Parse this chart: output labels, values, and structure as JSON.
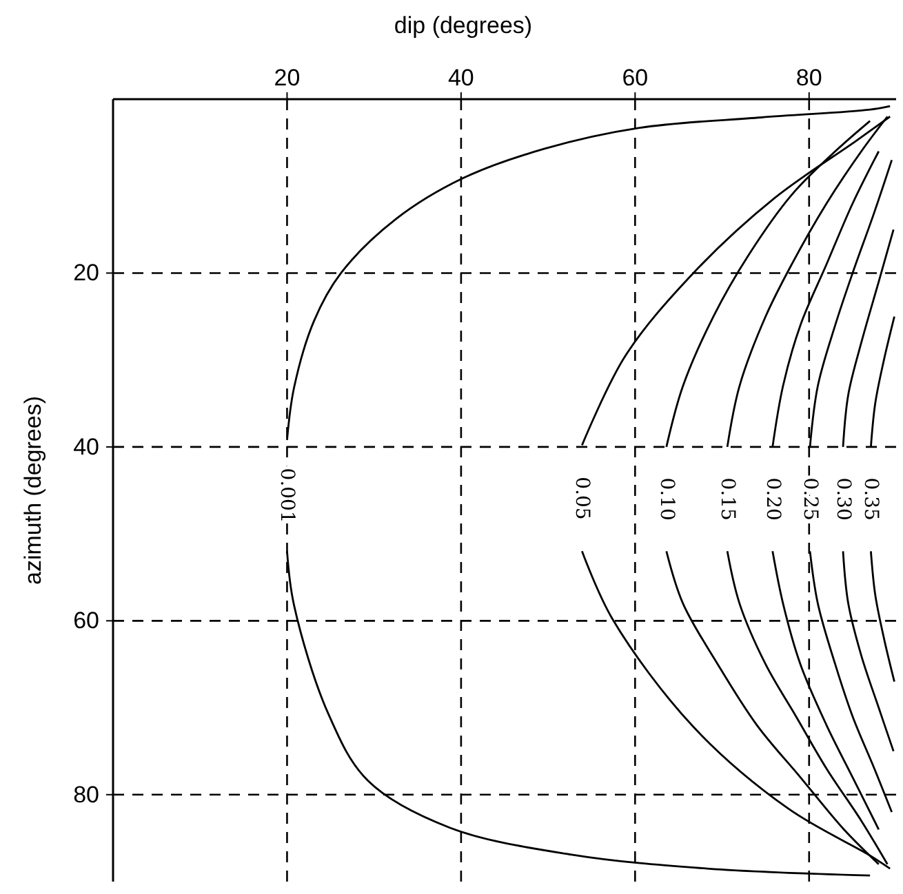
{
  "chart_data": {
    "type": "line",
    "xlabel": "dip (degrees)",
    "ylabel": "azimuth (degrees)",
    "xlim": [
      0,
      90
    ],
    "ylim": [
      90,
      0
    ],
    "xticks": [
      20,
      40,
      60,
      80
    ],
    "yticks": [
      20,
      40,
      60,
      80
    ],
    "grid": true,
    "marker": "none",
    "line_style": "solid",
    "series": [
      {
        "name": "0.001",
        "color": "#000000",
        "x": [
          89.3,
          87,
          74.5,
          60.5,
          49.6,
          40.2,
          32.5,
          26.2,
          23.1,
          20.8,
          20,
          null,
          20,
          20.8,
          24.7,
          29.3,
          38.7,
          52.7,
          68.3,
          87
        ],
        "values": [
          0.8,
          1.2,
          2.1,
          3.3,
          5.7,
          9.1,
          13.8,
          20,
          25.5,
          33.2,
          39.2,
          null,
          52,
          58.2,
          70.6,
          78.4,
          83.8,
          86.9,
          88.5,
          89.3
        ]
      },
      {
        "name": "0.05",
        "color": "#000000",
        "x": [
          89.3,
          85.4,
          76,
          66.7,
          58.9,
          53.9,
          null,
          53.9,
          57.4,
          66.7,
          77.6,
          87,
          89.3
        ],
        "values": [
          2,
          4.8,
          11.4,
          20,
          29.5,
          39.8,
          null,
          52,
          59.8,
          72.2,
          81.6,
          87,
          88.5
        ]
      },
      {
        "name": "0.10",
        "color": "#000000",
        "x": [
          87,
          83,
          78,
          73,
          69,
          65.5,
          63.6,
          null,
          63.6,
          65.5,
          69.5,
          74,
          79,
          84,
          88
        ],
        "values": [
          2.5,
          6,
          11,
          18,
          25,
          33,
          40,
          null,
          52,
          58,
          65,
          72,
          78,
          84,
          88
        ]
      },
      {
        "name": "0.15",
        "color": "#000000",
        "x": [
          89,
          86,
          82,
          78,
          75,
          72,
          70.6,
          null,
          70.6,
          72,
          75,
          78.5,
          82,
          86,
          89
        ],
        "values": [
          2,
          6,
          12,
          19,
          25,
          33,
          40,
          null,
          52,
          58,
          65,
          71,
          77,
          83,
          88
        ]
      },
      {
        "name": "0.20",
        "color": "#000000",
        "x": [
          88,
          85,
          82,
          79,
          77,
          75.8,
          null,
          75.8,
          77,
          79,
          82,
          85,
          88
        ],
        "values": [
          6,
          12,
          19,
          26,
          33,
          40,
          null,
          52,
          58,
          65,
          72,
          78,
          84
        ]
      },
      {
        "name": "0.25",
        "color": "#000000",
        "x": [
          89.5,
          87.5,
          85,
          83,
          81,
          80.1,
          null,
          80.1,
          81,
          83,
          85,
          87.5,
          89.5
        ],
        "values": [
          7,
          13,
          20,
          26,
          33,
          40,
          null,
          52,
          58,
          65,
          71,
          77,
          82
        ]
      },
      {
        "name": "0.30",
        "color": "#000000",
        "x": [
          89.7,
          88,
          86,
          84.5,
          83.9,
          null,
          83.9,
          84.5,
          86,
          88,
          89.7
        ],
        "values": [
          15,
          21,
          28,
          34,
          40,
          null,
          52,
          58,
          64,
          70,
          75
        ]
      },
      {
        "name": "0.35",
        "color": "#000000",
        "x": [
          89.8,
          88.6,
          87.6,
          87.1,
          null,
          87.1,
          87.6,
          88.6,
          89.8
        ],
        "values": [
          25,
          30,
          35,
          40,
          null,
          52,
          57,
          62,
          67
        ]
      }
    ]
  }
}
